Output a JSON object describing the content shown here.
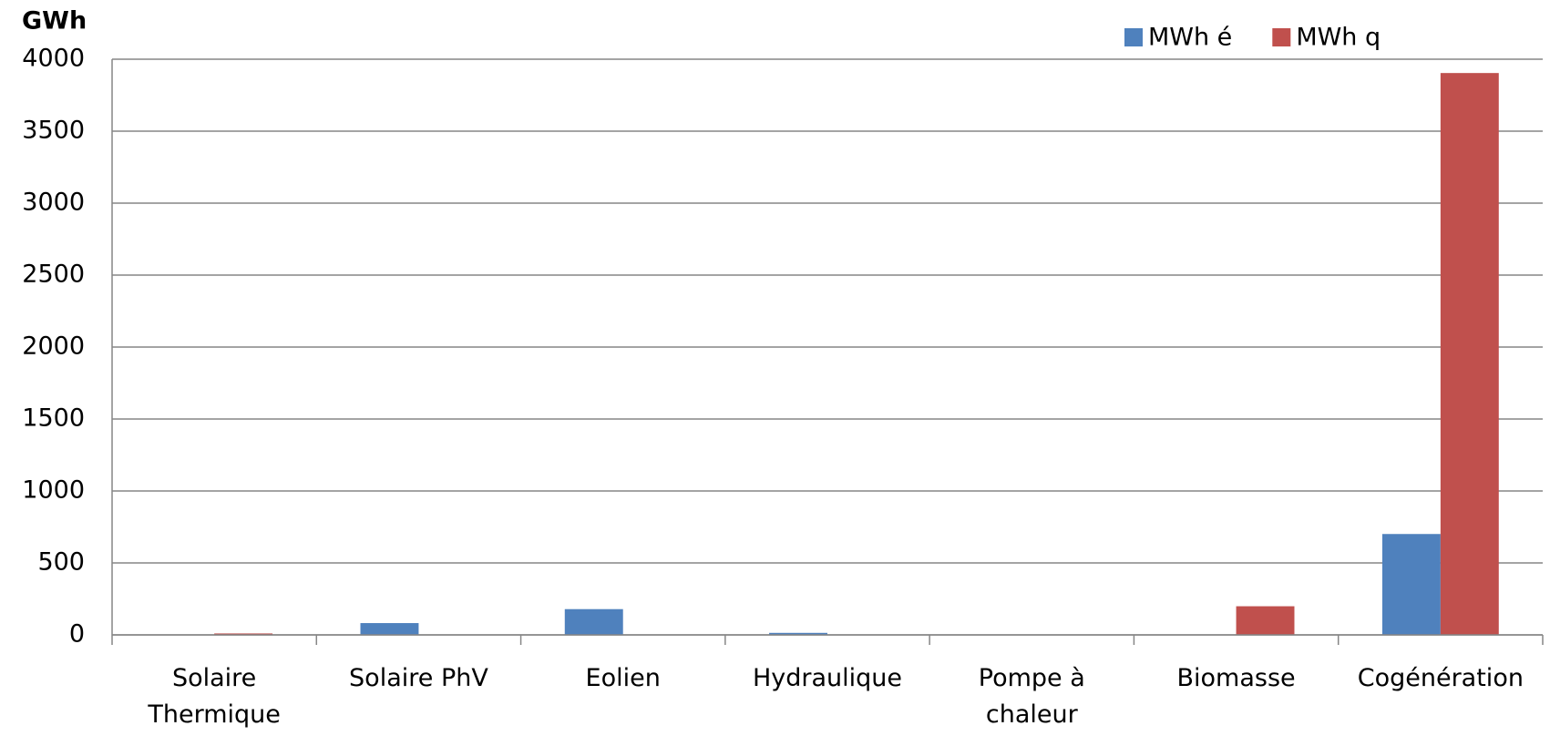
{
  "chart_data": {
    "type": "bar",
    "y_label": "GWh",
    "categories": [
      "Solaire Thermique",
      "Solaire PhV",
      "Eolien",
      "Hydraulique",
      "Pompe à chaleur",
      "Biomasse",
      "Cogénération"
    ],
    "series": [
      {
        "name": "MWh é",
        "color": "#4f81bd",
        "values": [
          0,
          82,
          179,
          14,
          0,
          0,
          701
        ]
      },
      {
        "name": "MWh q",
        "color": "#c0504d",
        "values": [
          10,
          0,
          0,
          0,
          3,
          199,
          3904
        ]
      }
    ],
    "ylim": [
      0,
      4000
    ],
    "yticks": [
      0,
      500,
      1000,
      1500,
      2000,
      2500,
      3000,
      3500,
      4000
    ],
    "grid": true,
    "legend": "top-right"
  }
}
